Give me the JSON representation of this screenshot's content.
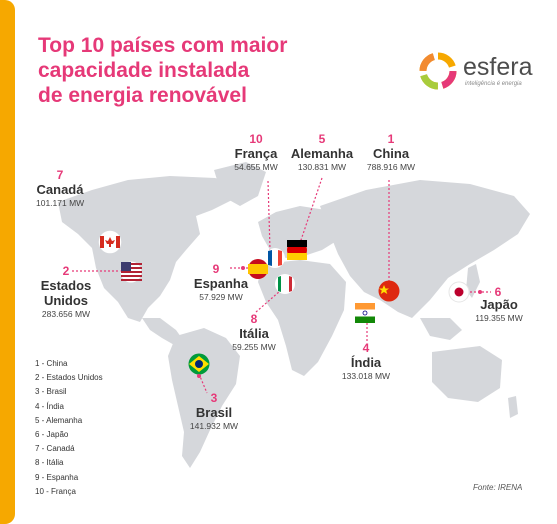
{
  "colors": {
    "accent_bar": "#f6a800",
    "title": "#e63978",
    "highlight": "#e63978",
    "map_land": "#d5d7db",
    "logo_icon": [
      "#f6a800",
      "#e63978",
      "#a8cc3c",
      "#f28a30"
    ]
  },
  "title_lines": [
    "Top 10 países com maior",
    "capacidade instalada",
    "de energia renovável"
  ],
  "logo": {
    "name": "esfera",
    "tagline": "inteligência é energia"
  },
  "countries": [
    {
      "rank": "1",
      "name": "China",
      "value": "788.916 MW",
      "flag": "china-flag"
    },
    {
      "rank": "2",
      "name": "Estados Unidos",
      "value": "283.656 MW",
      "flag": "usa-flag"
    },
    {
      "rank": "3",
      "name": "Brasil",
      "value": "141.932 MW",
      "flag": "brazil-flag"
    },
    {
      "rank": "4",
      "name": "Índia",
      "value": "133.018 MW",
      "flag": "india-flag"
    },
    {
      "rank": "5",
      "name": "Alemanha",
      "value": "130.831 MW",
      "flag": "germany-flag"
    },
    {
      "rank": "6",
      "name": "Japão",
      "value": "119.355 MW",
      "flag": "japan-flag"
    },
    {
      "rank": "7",
      "name": "Canadá",
      "value": "101.171 MW",
      "flag": "canada-flag"
    },
    {
      "rank": "8",
      "name": "Itália",
      "value": "59.255 MW",
      "flag": "italy-flag"
    },
    {
      "rank": "9",
      "name": "Espanha",
      "value": "57.929 MW",
      "flag": "spain-flag"
    },
    {
      "rank": "10",
      "name": "França",
      "value": "54.655 MW",
      "flag": "france-flag"
    }
  ],
  "us_name_lines": [
    "Estados",
    "Unidos"
  ],
  "legend": [
    "1 - China",
    "2 - Estados Unidos",
    "3 - Brasil",
    "4 - Índia",
    "5 - Alemanha",
    "6 - Japão",
    "7 - Canadá",
    "8 - Itália",
    "9 - Espanha",
    "10 - França"
  ],
  "source": "Fonte: IRENA"
}
